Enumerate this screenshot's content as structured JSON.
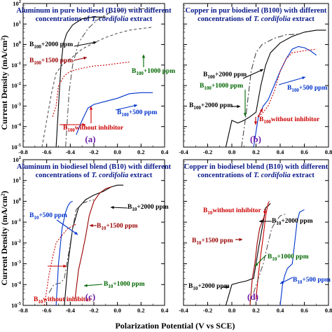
{
  "figure": {
    "xlabel": "Polarization Potential (V vs SCE)",
    "ylabel": "Current Density (mA/cm²)"
  },
  "chart_data": [
    {
      "panel": "(a)",
      "type": "line",
      "title": [
        "Aluminum in pure biodiesel (B100) with different",
        "concentrations of T. cordifolia extract"
      ],
      "x_ticks": [
        "-0.8",
        "-0.6",
        "-0.4",
        "-0.2",
        "0.0",
        "0.2",
        "0.4"
      ],
      "xlim": [
        -0.8,
        0.4
      ],
      "ylim": [
        1e-05,
        100
      ],
      "y_scale": "log",
      "series": [
        {
          "name": "2000 ppm",
          "color": "#000000",
          "dash": "",
          "points": [
            [
              -0.52,
              1e-05
            ],
            [
              -0.5,
              0.001
            ],
            [
              -0.48,
              0.08
            ],
            [
              -0.46,
              1
            ],
            [
              -0.43,
              3.5
            ],
            [
              -0.38,
              9
            ],
            [
              -0.3,
              18
            ],
            [
              -0.2,
              22
            ],
            [
              -0.1,
              22
            ]
          ]
        },
        {
          "name": "1500 ppm",
          "color": "#555555",
          "dash": "8 3 2 3",
          "points": [
            [
              -0.44,
              1e-05
            ],
            [
              -0.41,
              0.005
            ],
            [
              -0.38,
              0.1
            ],
            [
              -0.33,
              1.2
            ],
            [
              -0.25,
              6
            ],
            [
              -0.15,
              20
            ],
            [
              -0.05,
              38
            ],
            [
              0.05,
              48
            ],
            [
              0.12,
              52
            ],
            [
              0.2,
              55
            ],
            [
              0.3,
              55
            ]
          ]
        },
        {
          "name": "1000 ppm",
          "color": "#555555",
          "dash": "4 3",
          "points": [
            [
              -0.64,
              1e-05
            ],
            [
              -0.6,
              0.0002
            ],
            [
              -0.56,
              0.004
            ],
            [
              -0.52,
              0.04
            ],
            [
              -0.47,
              0.1
            ],
            [
              -0.4,
              0.2
            ],
            [
              -0.3,
              0.6
            ],
            [
              -0.2,
              1.2
            ],
            [
              -0.1,
              2.2
            ],
            [
              0.0,
              3.5
            ],
            [
              0.1,
              5
            ],
            [
              0.2,
              6
            ],
            [
              0.3,
              7
            ]
          ]
        },
        {
          "name": "500 ppm",
          "color": "#0033cc",
          "dash": "",
          "points": [
            [
              -0.35,
              4e-05
            ],
            [
              -0.3,
              0.0002
            ],
            [
              -0.25,
              0.0008
            ],
            [
              -0.2,
              0.0012
            ],
            [
              -0.1,
              0.0017
            ],
            [
              0.0,
              0.0024
            ],
            [
              0.1,
              0.004
            ],
            [
              0.2,
              0.0045
            ],
            [
              0.3,
              0.0045
            ]
          ]
        },
        {
          "name": "without inhibitor",
          "color": "#cc0000",
          "dash": "2 2",
          "points": [
            [
              -0.55,
              0.0003
            ],
            [
              -0.52,
              0.001
            ],
            [
              -0.5,
              0.01
            ],
            [
              -0.45,
              0.03
            ],
            [
              -0.4,
              0.05
            ],
            [
              -0.3,
              0.07
            ],
            [
              -0.2,
              0.09
            ],
            [
              -0.1,
              0.1
            ],
            [
              0.0,
              0.12
            ],
            [
              0.1,
              0.14
            ]
          ]
        }
      ],
      "annotations": [
        {
          "base": "B",
          "sub": "100",
          "text": "+2000 ppm",
          "color": "#000000"
        },
        {
          "base": "B",
          "sub": "100",
          "text": "+1500 ppm",
          "color": "#990000"
        },
        {
          "base": "B",
          "sub": "100",
          "text": "+1000 ppm",
          "color": "#006600"
        },
        {
          "base": "B",
          "sub": "100",
          "text": "+500 ppm",
          "color": "#0033cc"
        },
        {
          "base": "B",
          "sub": "100",
          "text": "without inhibitor",
          "color": "#cc0000"
        }
      ]
    },
    {
      "panel": "(b)",
      "type": "line",
      "title": [
        "Copper in pur biodiesel (B100) with different",
        "concentrations of T. cordifolia extract"
      ],
      "x_ticks": [
        "-0.4",
        "-0.2",
        "0.0",
        "0.2",
        "0.4",
        "0.6",
        "0.8"
      ],
      "xlim": [
        -0.4,
        0.8
      ],
      "ylim": [
        1e-05,
        100
      ],
      "y_scale": "log",
      "series": [
        {
          "name": "2000 ppm",
          "color": "#000000",
          "dash": "",
          "points": [
            [
              -0.05,
              1e-05
            ],
            [
              0.0,
              0.0002
            ],
            [
              0.05,
              0.00015
            ],
            [
              0.1,
              0.0002
            ],
            [
              0.15,
              0.0003
            ],
            [
              0.2,
              0.0005
            ],
            [
              0.24,
              0.01
            ],
            [
              0.28,
              0.1
            ],
            [
              0.32,
              0.4
            ],
            [
              0.4,
              1.2
            ],
            [
              0.5,
              2.5
            ],
            [
              0.6,
              4
            ],
            [
              0.7,
              5
            ],
            [
              0.78,
              5
            ]
          ]
        },
        {
          "name": "1000 ppm",
          "color": "#444444",
          "dash": "8 3 2 3",
          "points": [
            [
              0.08,
              1e-05
            ],
            [
              0.12,
              0.0005
            ],
            [
              0.16,
              0.05
            ],
            [
              0.2,
              0.4
            ],
            [
              0.25,
              1
            ],
            [
              0.35,
              2
            ],
            [
              0.45,
              3
            ],
            [
              0.55,
              3.2
            ]
          ]
        },
        {
          "name": "500 ppm",
          "color": "#0033cc",
          "dash": "",
          "points": [
            [
              0.18,
              1e-05
            ],
            [
              0.22,
              0.0003
            ],
            [
              0.26,
              0.001
            ],
            [
              0.3,
              0.002
            ],
            [
              0.35,
              0.01
            ],
            [
              0.4,
              0.05
            ],
            [
              0.45,
              0.2
            ],
            [
              0.5,
              0.6
            ],
            [
              0.55,
              0.8
            ],
            [
              0.6,
              0.7
            ],
            [
              0.65,
              0.5
            ],
            [
              0.7,
              0.3
            ]
          ]
        },
        {
          "name": "without inhibitor",
          "color": "#cc0000",
          "dash": "2 2",
          "points": [
            [
              0.22,
              0.0003
            ],
            [
              0.26,
              0.0005
            ],
            [
              0.3,
              0.001
            ],
            [
              0.35,
              0.005
            ],
            [
              0.4,
              0.05
            ],
            [
              0.45,
              0.2
            ],
            [
              0.5,
              0.4
            ],
            [
              0.6,
              0.5
            ],
            [
              0.7,
              0.6
            ]
          ]
        }
      ],
      "annotations": [
        {
          "base": "B",
          "sub": "100",
          "text": "+2000 ppm",
          "color": "#000000"
        },
        {
          "base": "B",
          "sub": "100",
          "text": "+1000 ppm",
          "color": "#006600"
        },
        {
          "base": "B",
          "sub": "100",
          "text": "+500 ppm",
          "color": "#0033cc"
        },
        {
          "base": "B",
          "sub": "100",
          "text": "+2000 ppm",
          "color": "#000000"
        },
        {
          "base": "B",
          "sub": "100",
          "text": "without inhibitor",
          "color": "#cc0000"
        }
      ]
    },
    {
      "panel": "(c)",
      "type": "line",
      "title": [
        "Aluminum in biodiesel blend (B10) with different",
        "concentrations of T. cordifolia extract"
      ],
      "x_ticks": [
        "-0.8",
        "-0.6",
        "-0.4",
        "-0.2",
        "0.0",
        "0.2",
        "0.4"
      ],
      "xlim": [
        -0.8,
        0.4
      ],
      "ylim": [
        1e-05,
        100
      ],
      "y_scale": "log",
      "series": [
        {
          "name": "2000 ppm",
          "color": "#000000",
          "dash": "",
          "points": [
            [
              -0.45,
              1e-05
            ],
            [
              -0.42,
              0.001
            ],
            [
              -0.38,
              0.05
            ],
            [
              -0.33,
              0.5
            ],
            [
              -0.27,
              1.2
            ],
            [
              -0.2,
              2
            ],
            [
              -0.12,
              3
            ],
            [
              -0.05,
              5
            ],
            [
              0.0,
              6
            ],
            [
              0.05,
              6
            ]
          ]
        },
        {
          "name": "1500 ppm",
          "color": "#990000",
          "dash": "",
          "points": [
            [
              -0.36,
              2e-05
            ],
            [
              -0.33,
              0.0005
            ],
            [
              -0.3,
              0.003
            ],
            [
              -0.27,
              0.02
            ],
            [
              -0.24,
              0.2
            ],
            [
              -0.2,
              1
            ],
            [
              -0.15,
              2.5
            ],
            [
              -0.1,
              4
            ],
            [
              -0.05,
              5
            ]
          ]
        },
        {
          "name": "1000 ppm",
          "color": "#555555",
          "dash": "8 3 2 3",
          "points": [
            [
              -0.58,
              4e-05
            ],
            [
              -0.54,
              0.0001
            ],
            [
              -0.48,
              0.00012
            ],
            [
              -0.45,
              0.0002
            ],
            [
              -0.42,
              0.002
            ],
            [
              -0.38,
              0.05
            ],
            [
              -0.35,
              0.4
            ],
            [
              -0.3,
              0.8
            ],
            [
              -0.25,
              1
            ],
            [
              -0.2,
              1.2
            ]
          ]
        },
        {
          "name": "500 ppm",
          "color": "#0033cc",
          "dash": "",
          "points": [
            [
              -0.52,
              1e-05
            ],
            [
              -0.5,
              0.001
            ],
            [
              -0.47,
              0.05
            ],
            [
              -0.44,
              0.3
            ],
            [
              -0.42,
              0.6
            ],
            [
              -0.4,
              0.9
            ],
            [
              -0.38,
              1
            ]
          ]
        },
        {
          "name": "without inhibitor",
          "color": "#cc0000",
          "dash": "2 2",
          "points": [
            [
              -0.62,
              1e-05
            ],
            [
              -0.58,
              0.0003
            ],
            [
              -0.55,
              0.002
            ],
            [
              -0.52,
              0.01
            ],
            [
              -0.48,
              0.02
            ],
            [
              -0.42,
              0.05
            ],
            [
              -0.35,
              0.08
            ]
          ]
        }
      ],
      "annotations": [
        {
          "base": "B",
          "sub": "10",
          "text": "+2000 ppm",
          "color": "#000000"
        },
        {
          "base": "B",
          "sub": "10",
          "text": "+500 ppm",
          "color": "#0033cc"
        },
        {
          "base": "B",
          "sub": "10",
          "text": "+1500 ppm",
          "color": "#990000"
        },
        {
          "base": "B",
          "sub": "10",
          "text": "without inhibitor",
          "color": "#cc0000"
        },
        {
          "base": "B",
          "sub": "10",
          "text": "+1000 ppm",
          "color": "#006600"
        }
      ]
    },
    {
      "panel": "(d)",
      "type": "line",
      "title": [
        "Copper in biodiesel blend (B10) with different",
        "concentrations of T. cordifolia extract"
      ],
      "x_ticks": [
        "-0.4",
        "-0.2",
        "0.0",
        "0.2",
        "0.4",
        "0.6",
        "0.8"
      ],
      "xlim": [
        -0.4,
        0.8
      ],
      "ylim": [
        1e-05,
        100
      ],
      "y_scale": "log",
      "series": [
        {
          "name": "2000 ppm",
          "color": "#000000",
          "dash": "",
          "points": [
            [
              -0.05,
              1e-05
            ],
            [
              0.0,
              0.0001
            ],
            [
              0.05,
              0.00012
            ],
            [
              0.12,
              0.00015
            ],
            [
              0.18,
              0.0002
            ],
            [
              0.22,
              0.005
            ],
            [
              0.26,
              0.1
            ],
            [
              0.28,
              0.5
            ],
            [
              0.3,
              0.6
            ],
            [
              0.32,
              0.8
            ]
          ]
        },
        {
          "name": "without inhibitor",
          "color": "#cc0000",
          "dash": "",
          "points": [
            [
              0.2,
              2e-05
            ],
            [
              0.22,
              0.0003
            ],
            [
              0.24,
              0.003
            ],
            [
              0.26,
              0.02
            ],
            [
              0.28,
              0.2
            ],
            [
              0.3,
              0.8
            ],
            [
              0.31,
              1
            ]
          ]
        },
        {
          "name": "1500 ppm",
          "color": "#990000",
          "dash": "",
          "points": [
            [
              0.15,
              1e-05
            ],
            [
              0.17,
              0.0002
            ],
            [
              0.19,
              0.001
            ],
            [
              0.21,
              0.01
            ],
            [
              0.23,
              0.05
            ],
            [
              0.25,
              0.1
            ],
            [
              0.27,
              0.2
            ]
          ]
        },
        {
          "name": "1000 ppm",
          "color": "#555555",
          "dash": "8 3 2 3",
          "points": [
            [
              0.18,
              4e-05
            ],
            [
              0.22,
              0.0002
            ],
            [
              0.26,
              0.001
            ],
            [
              0.3,
              0.01
            ],
            [
              0.33,
              0.05
            ],
            [
              0.36,
              0.1
            ],
            [
              0.4,
              0.2
            ],
            [
              0.45,
              0.25
            ]
          ]
        },
        {
          "name": "500 ppm",
          "color": "#0033cc",
          "dash": "",
          "points": [
            [
              0.4,
              1e-05
            ],
            [
              0.42,
              0.0001
            ],
            [
              0.44,
              0.0003
            ],
            [
              0.46,
              0.0006
            ],
            [
              0.5,
              0.001
            ],
            [
              0.52,
              0.01
            ],
            [
              0.54,
              0.1
            ],
            [
              0.56,
              0.3
            ],
            [
              0.6,
              0.4
            ]
          ]
        }
      ],
      "annotations": [
        {
          "base": "B",
          "sub": "10",
          "text": "without inhibitor",
          "color": "#cc0000"
        },
        {
          "base": "B",
          "sub": "10",
          "text": "+2000 ppm",
          "color": "#000000"
        },
        {
          "base": "B",
          "sub": "10",
          "text": "+1500 ppm",
          "color": "#990000"
        },
        {
          "base": "B",
          "sub": "10",
          "text": "+1000 ppm",
          "color": "#006600"
        },
        {
          "base": "B",
          "sub": "10",
          "text": "+2000 ppm",
          "color": "#000000"
        },
        {
          "base": "B",
          "sub": "10",
          "text": "+500 ppm",
          "color": "#0033cc"
        }
      ]
    }
  ]
}
